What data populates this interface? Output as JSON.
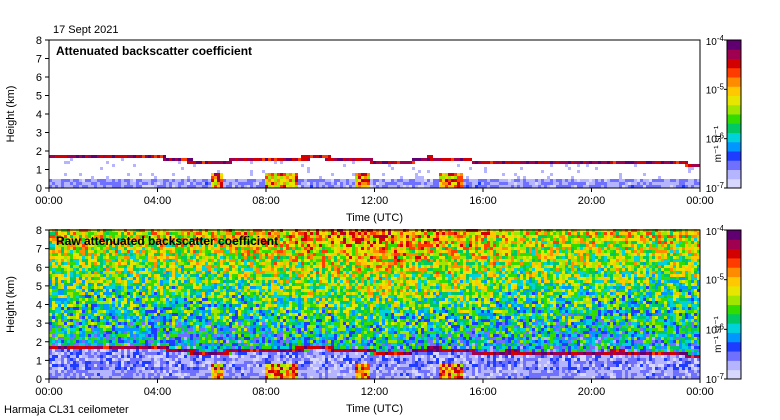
{
  "date_label": "17 Sept 2021",
  "footer_label": "Harmaja CL31 ceilometer",
  "colors": {
    "scale": [
      "#d8d8ff",
      "#b4b4ff",
      "#7070ff",
      "#1e3cff",
      "#0096ff",
      "#00d2dc",
      "#00c864",
      "#32dc00",
      "#a0e600",
      "#e6e600",
      "#ffc800",
      "#ff8c00",
      "#ff3c00",
      "#d20000",
      "#a00050",
      "#600070"
    ]
  },
  "chart_data": [
    {
      "type": "heatmap",
      "title": "Attenuated backscatter coefficient",
      "xlabel": "Time (UTC)",
      "ylabel": "Height (km)",
      "xlim": [
        0,
        24
      ],
      "ylim": [
        0,
        8
      ],
      "x_ticks": [
        "00:00",
        "04:00",
        "08:00",
        "12:00",
        "16:00",
        "20:00",
        "00:00"
      ],
      "x_tick_values": [
        0,
        4,
        8,
        12,
        16,
        20,
        24
      ],
      "y_ticks": [
        "0",
        "1",
        "2",
        "3",
        "4",
        "5",
        "6",
        "7",
        "8"
      ],
      "y_tick_values": [
        0,
        1,
        2,
        3,
        4,
        5,
        6,
        7,
        8
      ],
      "colorbar": {
        "label": "m⁻¹ sr⁻¹",
        "scale": "log",
        "range": [
          1e-07,
          0.0001
        ],
        "ticks": [
          {
            "base": "10",
            "exp": "-7"
          },
          {
            "base": "10",
            "exp": "-6"
          },
          {
            "base": "10",
            "exp": "-5"
          },
          {
            "base": "10",
            "exp": "-4"
          }
        ]
      },
      "boundary_layer_height_km": [
        [
          0,
          1.72
        ],
        [
          1,
          1.75
        ],
        [
          2,
          1.72
        ],
        [
          3,
          1.75
        ],
        [
          4,
          1.68
        ],
        [
          5,
          1.48
        ],
        [
          6,
          1.38
        ],
        [
          7,
          1.5
        ],
        [
          8,
          1.55
        ],
        [
          9,
          1.6
        ],
        [
          10,
          1.65
        ],
        [
          11,
          1.55
        ],
        [
          12,
          1.45
        ],
        [
          13,
          1.35
        ],
        [
          14,
          1.62
        ],
        [
          15,
          1.58
        ],
        [
          16,
          1.38
        ],
        [
          17,
          1.45
        ],
        [
          18,
          1.42
        ],
        [
          19,
          1.4
        ],
        [
          20,
          1.42
        ],
        [
          21,
          1.45
        ],
        [
          22,
          1.4
        ],
        [
          23,
          1.38
        ],
        [
          24,
          1.2
        ]
      ]
    },
    {
      "type": "heatmap",
      "title": "Raw attenuated backscatter coefficient",
      "xlabel": "Time (UTC)",
      "ylabel": "Height (km)",
      "xlim": [
        0,
        24
      ],
      "ylim": [
        0,
        8
      ],
      "x_ticks": [
        "00:00",
        "04:00",
        "08:00",
        "12:00",
        "16:00",
        "20:00",
        "00:00"
      ],
      "x_tick_values": [
        0,
        4,
        8,
        12,
        16,
        20,
        24
      ],
      "y_ticks": [
        "0",
        "1",
        "2",
        "3",
        "4",
        "5",
        "6",
        "7",
        "8"
      ],
      "y_tick_values": [
        0,
        1,
        2,
        3,
        4,
        5,
        6,
        7,
        8
      ],
      "colorbar": {
        "label": "m⁻¹ sr⁻¹",
        "scale": "log",
        "range": [
          1e-07,
          0.0001
        ],
        "ticks": [
          {
            "base": "10",
            "exp": "-7"
          },
          {
            "base": "10",
            "exp": "-6"
          },
          {
            "base": "10",
            "exp": "-5"
          },
          {
            "base": "10",
            "exp": "-4"
          }
        ]
      },
      "boundary_layer_height_km": [
        [
          0,
          1.72
        ],
        [
          1,
          1.75
        ],
        [
          2,
          1.72
        ],
        [
          3,
          1.75
        ],
        [
          4,
          1.68
        ],
        [
          5,
          1.48
        ],
        [
          6,
          1.38
        ],
        [
          7,
          1.5
        ],
        [
          8,
          1.55
        ],
        [
          9,
          1.6
        ],
        [
          10,
          1.65
        ],
        [
          11,
          1.55
        ],
        [
          12,
          1.45
        ],
        [
          13,
          1.35
        ],
        [
          14,
          1.62
        ],
        [
          15,
          1.58
        ],
        [
          16,
          1.38
        ],
        [
          17,
          1.45
        ],
        [
          18,
          1.42
        ],
        [
          19,
          1.4
        ],
        [
          20,
          1.42
        ],
        [
          21,
          1.45
        ],
        [
          22,
          1.4
        ],
        [
          23,
          1.38
        ],
        [
          24,
          1.2
        ]
      ]
    }
  ]
}
